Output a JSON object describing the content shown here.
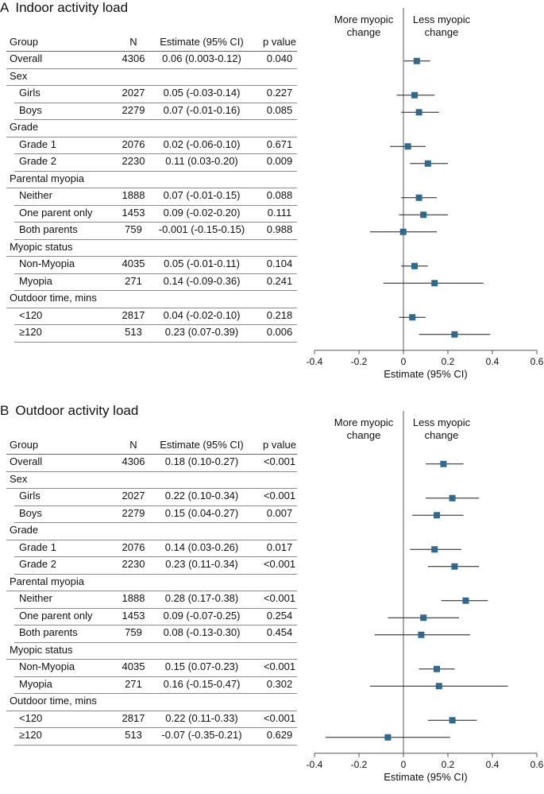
{
  "columns": {
    "group": "Group",
    "n": "N",
    "estimate": "Estimate (95% CI)",
    "p": "p value"
  },
  "direction_labels": {
    "left": [
      "More myopic",
      "change"
    ],
    "right": [
      "Less myopic",
      "change"
    ]
  },
  "colors": {
    "marker": "#2e6a8e",
    "line": "#1a1a1a",
    "axis": "#555555"
  },
  "panels": [
    {
      "letter": "A",
      "title": "Indoor activity load",
      "rows": [
        {
          "kind": "data",
          "label": "Overall",
          "n": "4306",
          "est_text": "0.06 (0.003-0.12)",
          "p": "0.040",
          "est": 0.06,
          "lo": 0.003,
          "hi": 0.12
        },
        {
          "kind": "header",
          "label": "Sex"
        },
        {
          "kind": "data",
          "indent": true,
          "label": "Girls",
          "n": "2027",
          "est_text": "0.05 (-0.03-0.14)",
          "p": "0.227",
          "est": 0.05,
          "lo": -0.03,
          "hi": 0.14
        },
        {
          "kind": "data",
          "indent": true,
          "label": "Boys",
          "n": "2279",
          "est_text": "0.07 (-0.01-0.16)",
          "p": "0.085",
          "est": 0.07,
          "lo": -0.01,
          "hi": 0.16
        },
        {
          "kind": "header",
          "label": "Grade"
        },
        {
          "kind": "data",
          "indent": true,
          "label": "Grade 1",
          "n": "2076",
          "est_text": "0.02 (-0.06-0.10)",
          "p": "0.671",
          "est": 0.02,
          "lo": -0.06,
          "hi": 0.1
        },
        {
          "kind": "data",
          "indent": true,
          "label": "Grade 2",
          "n": "2230",
          "est_text": "0.11 (0.03-0.20)",
          "p": "0.009",
          "est": 0.11,
          "lo": 0.03,
          "hi": 0.2
        },
        {
          "kind": "header",
          "label": "Parental myopia"
        },
        {
          "kind": "data",
          "indent": true,
          "label": "Neither",
          "n": "1888",
          "est_text": "0.07 (-0.01-0.15)",
          "p": "0.088",
          "est": 0.07,
          "lo": -0.01,
          "hi": 0.15
        },
        {
          "kind": "data",
          "indent": true,
          "label": "One parent only",
          "n": "1453",
          "est_text": "0.09 (-0.02-0.20)",
          "p": "0.111",
          "est": 0.09,
          "lo": -0.02,
          "hi": 0.2
        },
        {
          "kind": "data",
          "indent": true,
          "label": "Both parents",
          "n": "759",
          "est_text": "-0.001 (-0.15-0.15)",
          "p": "0.988",
          "est": -0.001,
          "lo": -0.15,
          "hi": 0.15
        },
        {
          "kind": "header",
          "label": "Myopic status"
        },
        {
          "kind": "data",
          "indent": true,
          "label": "Non-Myopia",
          "n": "4035",
          "est_text": "0.05 (-0.01-0.11)",
          "p": "0.104",
          "est": 0.05,
          "lo": -0.01,
          "hi": 0.11
        },
        {
          "kind": "data",
          "indent": true,
          "label": "Myopia",
          "n": "271",
          "est_text": "0.14 (-0.09-0.36)",
          "p": "0.241",
          "est": 0.14,
          "lo": -0.09,
          "hi": 0.36
        },
        {
          "kind": "header",
          "label": "Outdoor time, mins"
        },
        {
          "kind": "data",
          "indent": true,
          "label": "<120",
          "n": "2817",
          "est_text": "0.04 (-0.02-0.10)",
          "p": "0.218",
          "est": 0.04,
          "lo": -0.02,
          "hi": 0.1
        },
        {
          "kind": "data",
          "indent": true,
          "label": "≥120",
          "n": "513",
          "est_text": "0.23 (0.07-0.39)",
          "p": "0.006",
          "est": 0.23,
          "lo": 0.07,
          "hi": 0.39
        }
      ]
    },
    {
      "letter": "B",
      "title": "Outdoor activity load",
      "rows": [
        {
          "kind": "data",
          "label": "Overall",
          "n": "4306",
          "est_text": "0.18 (0.10-0.27)",
          "p": "<0.001",
          "est": 0.18,
          "lo": 0.1,
          "hi": 0.27
        },
        {
          "kind": "header",
          "label": "Sex"
        },
        {
          "kind": "data",
          "indent": true,
          "label": "Girls",
          "n": "2027",
          "est_text": "0.22 (0.10-0.34)",
          "p": "<0.001",
          "est": 0.22,
          "lo": 0.1,
          "hi": 0.34
        },
        {
          "kind": "data",
          "indent": true,
          "label": "Boys",
          "n": "2279",
          "est_text": "0.15 (0.04-0.27)",
          "p": "0.007",
          "est": 0.15,
          "lo": 0.04,
          "hi": 0.27
        },
        {
          "kind": "header",
          "label": "Grade"
        },
        {
          "kind": "data",
          "indent": true,
          "label": "Grade 1",
          "n": "2076",
          "est_text": "0.14 (0.03-0.26)",
          "p": "0.017",
          "est": 0.14,
          "lo": 0.03,
          "hi": 0.26
        },
        {
          "kind": "data",
          "indent": true,
          "label": "Grade 2",
          "n": "2230",
          "est_text": "0.23 (0.11-0.34)",
          "p": "<0.001",
          "est": 0.23,
          "lo": 0.11,
          "hi": 0.34
        },
        {
          "kind": "header",
          "label": "Parental myopia"
        },
        {
          "kind": "data",
          "indent": true,
          "label": "Neither",
          "n": "1888",
          "est_text": "0.28 (0.17-0.38)",
          "p": "<0.001",
          "est": 0.28,
          "lo": 0.17,
          "hi": 0.38
        },
        {
          "kind": "data",
          "indent": true,
          "label": "One parent only",
          "n": "1453",
          "est_text": "0.09 (-0.07-0.25)",
          "p": "0.254",
          "est": 0.09,
          "lo": -0.07,
          "hi": 0.25
        },
        {
          "kind": "data",
          "indent": true,
          "label": "Both parents",
          "n": "759",
          "est_text": "0.08 (-0.13-0.30)",
          "p": "0.454",
          "est": 0.08,
          "lo": -0.13,
          "hi": 0.3
        },
        {
          "kind": "header",
          "label": "Myopic status"
        },
        {
          "kind": "data",
          "indent": true,
          "label": "Non-Myopia",
          "n": "4035",
          "est_text": "0.15 (0.07-0.23)",
          "p": "<0.001",
          "est": 0.15,
          "lo": 0.07,
          "hi": 0.23
        },
        {
          "kind": "data",
          "indent": true,
          "label": "Myopia",
          "n": "271",
          "est_text": "0.16 (-0.15-0.47)",
          "p": "0.302",
          "est": 0.16,
          "lo": -0.15,
          "hi": 0.47
        },
        {
          "kind": "header",
          "label": "Outdoor time, mins"
        },
        {
          "kind": "data",
          "indent": true,
          "label": "<120",
          "n": "2817",
          "est_text": "0.22 (0.11-0.33)",
          "p": "<0.001",
          "est": 0.22,
          "lo": 0.11,
          "hi": 0.33
        },
        {
          "kind": "data",
          "indent": true,
          "label": "≥120",
          "n": "513",
          "est_text": "-0.07 (-0.35-0.21)",
          "p": "0.629",
          "est": -0.07,
          "lo": -0.35,
          "hi": 0.21
        }
      ]
    }
  ],
  "chart_data": [
    {
      "type": "forest",
      "title": "Indoor activity load",
      "xlabel": "Estimate (95% CI)",
      "xlim": [
        -0.4,
        0.6
      ],
      "xticks": [
        "-0.4",
        "-0.2",
        "0",
        "0.2",
        "0.4",
        "0.6"
      ],
      "reference_line": 0,
      "categories": [
        "Overall",
        "Girls",
        "Boys",
        "Grade 1",
        "Grade 2",
        "Neither",
        "One parent only",
        "Both parents",
        "Non-Myopia",
        "Myopia",
        "<120",
        "≥120"
      ],
      "estimate": [
        0.06,
        0.05,
        0.07,
        0.02,
        0.11,
        0.07,
        0.09,
        -0.001,
        0.05,
        0.14,
        0.04,
        0.23
      ],
      "ci_lower": [
        0.003,
        -0.03,
        -0.01,
        -0.06,
        0.03,
        -0.01,
        -0.02,
        -0.15,
        -0.01,
        -0.09,
        -0.02,
        0.07
      ],
      "ci_upper": [
        0.12,
        0.14,
        0.16,
        0.1,
        0.2,
        0.15,
        0.2,
        0.15,
        0.11,
        0.36,
        0.1,
        0.39
      ]
    },
    {
      "type": "forest",
      "title": "Outdoor activity load",
      "xlabel": "Estimate (95% CI)",
      "xlim": [
        -0.4,
        0.6
      ],
      "xticks": [
        "-0.4",
        "-0.2",
        "0",
        "0.2",
        "0.4",
        "0.6"
      ],
      "reference_line": 0,
      "categories": [
        "Overall",
        "Girls",
        "Boys",
        "Grade 1",
        "Grade 2",
        "Neither",
        "One parent only",
        "Both parents",
        "Non-Myopia",
        "Myopia",
        "<120",
        "≥120"
      ],
      "estimate": [
        0.18,
        0.22,
        0.15,
        0.14,
        0.23,
        0.28,
        0.09,
        0.08,
        0.15,
        0.16,
        0.22,
        -0.07
      ],
      "ci_lower": [
        0.1,
        0.1,
        0.04,
        0.03,
        0.11,
        0.17,
        -0.07,
        -0.13,
        0.07,
        -0.15,
        0.11,
        -0.35
      ],
      "ci_upper": [
        0.27,
        0.34,
        0.27,
        0.26,
        0.34,
        0.38,
        0.25,
        0.3,
        0.23,
        0.47,
        0.33,
        0.21
      ]
    }
  ]
}
